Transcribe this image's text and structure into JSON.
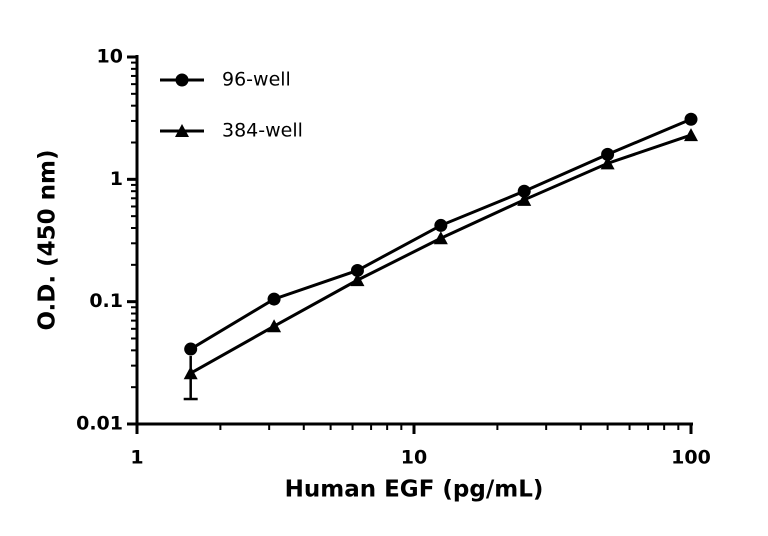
{
  "chart_data": {
    "type": "line",
    "x_label": "Human EGF (pg/mL)",
    "y_label": "O.D. (450 nm)",
    "x": [
      1.5625,
      3.125,
      6.25,
      12.5,
      25,
      50,
      100
    ],
    "series": [
      {
        "name": "96-well",
        "color": "#000000",
        "marker": "circle",
        "values": [
          0.041,
          0.105,
          0.18,
          0.42,
          0.8,
          1.6,
          3.1
        ]
      },
      {
        "name": "384-well",
        "color": "#000000",
        "marker": "triangle",
        "values": [
          0.026,
          0.063,
          0.15,
          0.33,
          0.68,
          1.35,
          2.3
        ],
        "errors": [
          0.01,
          null,
          null,
          null,
          null,
          null,
          null
        ]
      }
    ],
    "xlim": [
      1,
      100
    ],
    "xticks": [
      1,
      10,
      100
    ],
    "ylim": [
      0.01,
      10
    ],
    "yticks": [
      0.01,
      0.1,
      1,
      10
    ],
    "log_x": true,
    "log_y": true,
    "minor_ticks": true,
    "legend": "top-left"
  }
}
